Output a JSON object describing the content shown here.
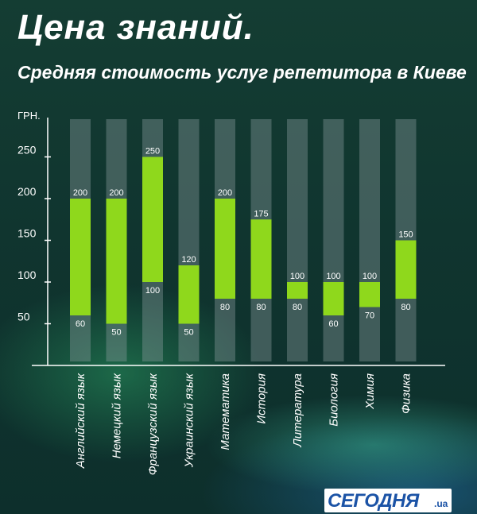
{
  "header": {
    "title": "Цена знаний.",
    "subtitle": "Средняя стоимость услуг репетитора в Киеве"
  },
  "logo": {
    "main": "СЕГОДНЯ",
    "suffix": ".ua"
  },
  "colors": {
    "bar": "#8fd81c",
    "track": "#8a9a9e",
    "axis": "#ffffff",
    "label": "#ffffff"
  },
  "chart_data": {
    "type": "bar",
    "subtype": "floating-range",
    "ylabel": "ГРН.",
    "ylim": [
      0,
      300
    ],
    "yticks": [
      50,
      100,
      150,
      200,
      250
    ],
    "grid": false,
    "categories": [
      "Английский язык",
      "Немецкий язык",
      "Французский язык",
      "Украинский язык",
      "Математика",
      "История",
      "Литература",
      "Биология",
      "Химия",
      "Физика"
    ],
    "series": [
      {
        "min": [
          60,
          50,
          100,
          50,
          80,
          80,
          80,
          60,
          70,
          80
        ],
        "max": [
          200,
          200,
          250,
          120,
          200,
          175,
          100,
          100,
          100,
          150
        ]
      }
    ]
  }
}
